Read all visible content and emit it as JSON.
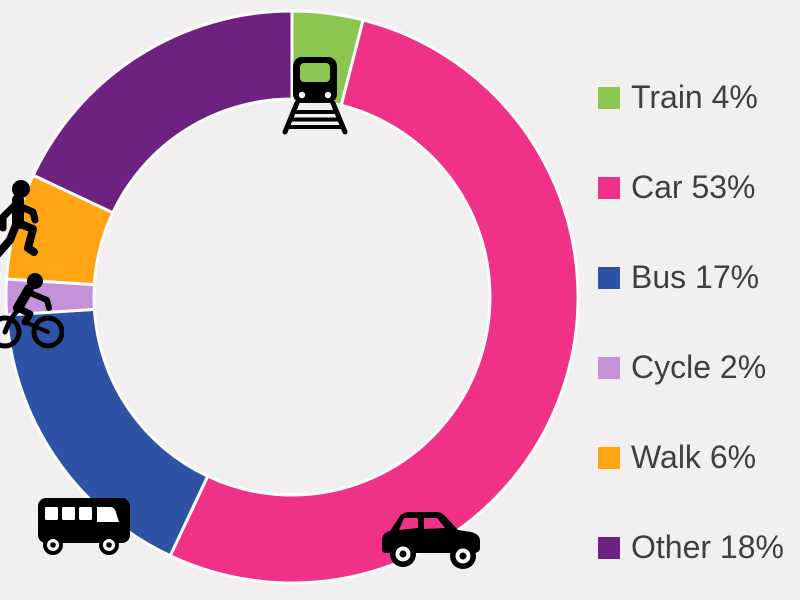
{
  "background_color": "#F1EFF0",
  "chart_data": {
    "type": "pie",
    "subtype": "donut",
    "title": "",
    "categories": [
      "Train",
      "Car",
      "Bus",
      "Cycle",
      "Walk",
      "Other"
    ],
    "values": [
      4,
      53,
      17,
      2,
      6,
      18
    ],
    "unit": "%",
    "colors": [
      "#8CC651",
      "#EF3188",
      "#2E53A4",
      "#C591D9",
      "#FFA513",
      "#6D2282"
    ],
    "start_angle_deg": 0,
    "direction": "clockwise",
    "segment_gap_color": "#FCFCFC",
    "legend_position": "right",
    "icons": [
      "train-icon",
      "car-icon",
      "bus-icon",
      "cycle-icon",
      "walk-icon"
    ]
  },
  "legend": {
    "items": [
      {
        "label": "Train 4%",
        "color": "#8CC651"
      },
      {
        "label": "Car 53%",
        "color": "#EF3188"
      },
      {
        "label": "Bus 17%",
        "color": "#2E53A4"
      },
      {
        "label": "Cycle 2%",
        "color": "#C591D9"
      },
      {
        "label": "Walk 6%",
        "color": "#FFA513"
      },
      {
        "label": "Other 18%",
        "color": "#6D2282"
      }
    ],
    "text_color": "#3F3F41"
  }
}
